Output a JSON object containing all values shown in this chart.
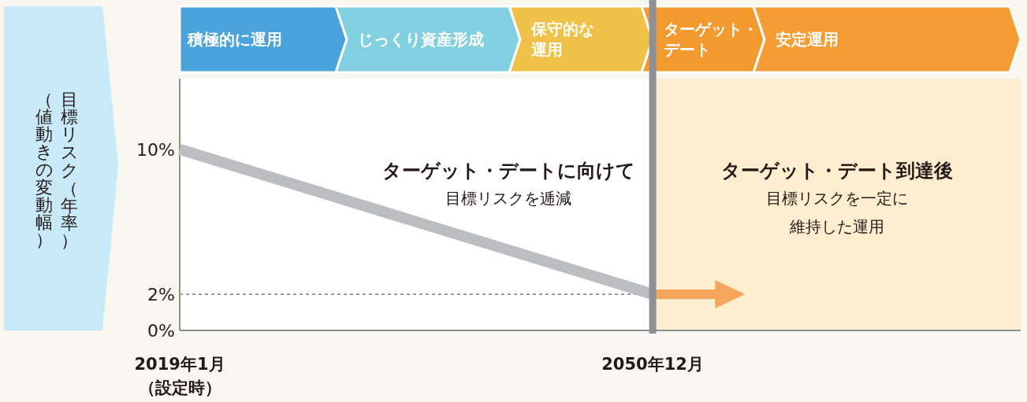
{
  "chart_data": {
    "type": "line",
    "ylabel": "目標リスク（年率）（値動きの変動幅）",
    "xlim": [
      "2019-01",
      "2075-10"
    ],
    "ylim": [
      0,
      13.9
    ],
    "xticks": [
      {
        "value": "2019-01",
        "label": "2019年1月（設定時）"
      },
      {
        "value": "2050-12",
        "label": "2050年12月"
      }
    ],
    "yticks": [
      {
        "value": 0,
        "label": "0%"
      },
      {
        "value": 2,
        "label": "2%"
      },
      {
        "value": 10,
        "label": "10%"
      }
    ],
    "series": [
      {
        "color": "#bcbdc1",
        "x": [
          "2019-01",
          "2050-12"
        ],
        "values": [
          10,
          2
        ]
      },
      {
        "color": "#f6a55c",
        "x": [
          "2050-12",
          "2056-02"
        ],
        "values": [
          2,
          2
        ]
      }
    ],
    "ref_lines": [
      {
        "axis": "y",
        "value": 2,
        "color": "#9a9a9a",
        "line_style": "dashed"
      },
      {
        "axis": "x",
        "value": "2050-12",
        "color": "#8f9094",
        "line_style": "solid"
      }
    ],
    "bands": [
      {
        "axis": "x",
        "from": "2050-12",
        "to": "2075-10",
        "color": "#fdeecf"
      }
    ],
    "annotations": [
      "ターゲット・デートに向けて",
      "目標リスクを逓減",
      "ターゲット・デート到達後",
      "目標リスクを一定に維持した運用",
      "積極的に運用",
      "じっくり資産形成",
      "保守的な運用",
      "ターゲット・デート",
      "安定運用"
    ],
    "grid": false,
    "line_style": "solid"
  }
}
